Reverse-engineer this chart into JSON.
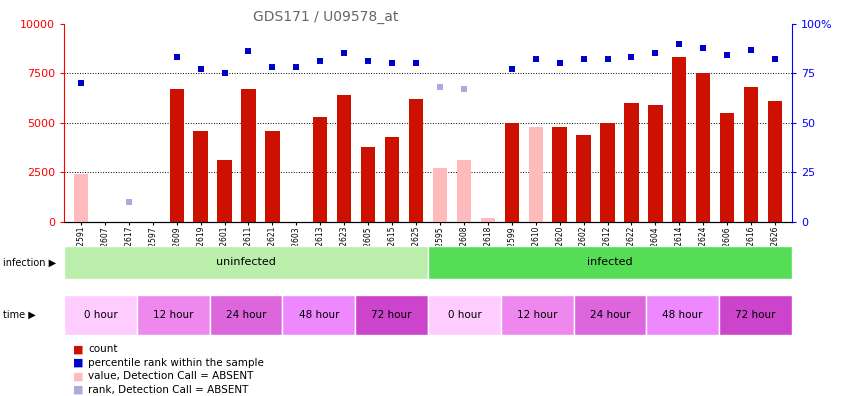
{
  "title": "GDS171 / U09578_at",
  "samples": [
    "GSM2591",
    "GSM2607",
    "GSM2617",
    "GSM2597",
    "GSM2609",
    "GSM2619",
    "GSM2601",
    "GSM2611",
    "GSM2621",
    "GSM2603",
    "GSM2613",
    "GSM2623",
    "GSM2605",
    "GSM2615",
    "GSM2625",
    "GSM2595",
    "GSM2608",
    "GSM2618",
    "GSM2599",
    "GSM2610",
    "GSM2620",
    "GSM2602",
    "GSM2612",
    "GSM2622",
    "GSM2604",
    "GSM2614",
    "GSM2624",
    "GSM2606",
    "GSM2616",
    "GSM2626"
  ],
  "count_values": [
    2400,
    0,
    0,
    0,
    6700,
    4600,
    3100,
    6700,
    4600,
    0,
    5300,
    6400,
    3800,
    4300,
    6200,
    2700,
    3100,
    200,
    5000,
    4800,
    4800,
    4400,
    5000,
    6000,
    5900,
    8300,
    7500,
    5500,
    6800,
    6100
  ],
  "rank_values_pct": [
    70,
    0,
    10,
    0,
    83,
    77,
    75,
    86,
    78,
    78,
    81,
    85,
    81,
    80,
    80,
    68,
    67,
    0,
    77,
    82,
    80,
    82,
    82,
    83,
    85,
    90,
    88,
    84,
    87,
    82
  ],
  "absent_count": [
    true,
    false,
    false,
    false,
    false,
    false,
    false,
    false,
    false,
    false,
    false,
    false,
    false,
    false,
    false,
    true,
    true,
    true,
    false,
    true,
    false,
    false,
    false,
    false,
    false,
    false,
    false,
    false,
    false,
    false
  ],
  "absent_rank": [
    false,
    false,
    true,
    false,
    false,
    false,
    false,
    false,
    false,
    false,
    false,
    false,
    false,
    false,
    false,
    true,
    true,
    true,
    false,
    false,
    false,
    false,
    false,
    false,
    false,
    false,
    false,
    false,
    false,
    false
  ],
  "ylim_left": [
    0,
    10000
  ],
  "ylim_right": [
    0,
    100
  ],
  "yticks_left": [
    0,
    2500,
    5000,
    7500,
    10000
  ],
  "ytick_labels_right": [
    "0",
    "25",
    "50",
    "75",
    "100%"
  ],
  "infection_bands": [
    {
      "label": "uninfected",
      "start": 0,
      "end": 15,
      "color": "#bbeeaa"
    },
    {
      "label": "infected",
      "start": 15,
      "end": 30,
      "color": "#55dd55"
    }
  ],
  "time_bands": [
    {
      "label": "0 hour",
      "start": 0,
      "end": 3,
      "color": "#ffccff"
    },
    {
      "label": "12 hour",
      "start": 3,
      "end": 6,
      "color": "#ee88ee"
    },
    {
      "label": "24 hour",
      "start": 6,
      "end": 9,
      "color": "#dd66dd"
    },
    {
      "label": "48 hour",
      "start": 9,
      "end": 12,
      "color": "#ee88ff"
    },
    {
      "label": "72 hour",
      "start": 12,
      "end": 15,
      "color": "#cc44cc"
    },
    {
      "label": "0 hour",
      "start": 15,
      "end": 18,
      "color": "#ffccff"
    },
    {
      "label": "12 hour",
      "start": 18,
      "end": 21,
      "color": "#ee88ee"
    },
    {
      "label": "24 hour",
      "start": 21,
      "end": 24,
      "color": "#dd66dd"
    },
    {
      "label": "48 hour",
      "start": 24,
      "end": 27,
      "color": "#ee88ff"
    },
    {
      "label": "72 hour",
      "start": 27,
      "end": 30,
      "color": "#cc44cc"
    }
  ],
  "bar_color_present": "#cc1100",
  "bar_color_absent": "#ffbbbb",
  "rank_color_present": "#0000cc",
  "rank_color_absent": "#aaaadd",
  "bg_color": "#ffffff",
  "title_color": "#666666",
  "title_fontsize": 10,
  "axis_label_color_left": "red",
  "axis_label_color_right": "blue"
}
